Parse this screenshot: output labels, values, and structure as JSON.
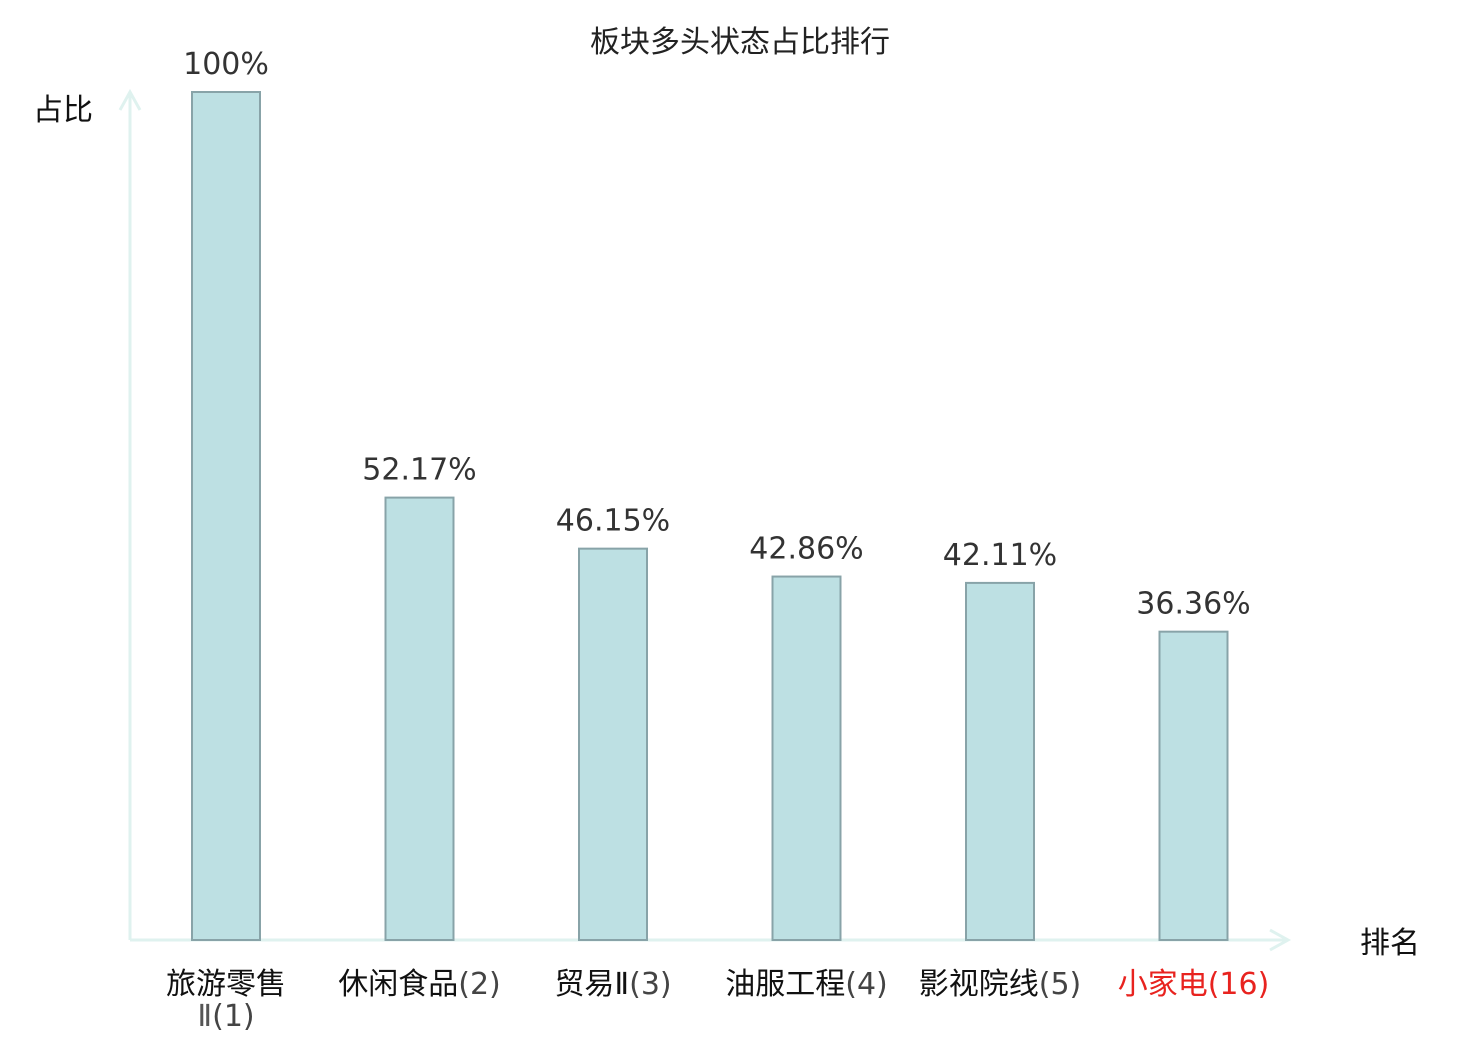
{
  "chart_data": {
    "type": "bar",
    "title": "板块多头状态占比排行",
    "ylabel": "占比",
    "xlabel": "排名",
    "ylim": [
      0,
      100
    ],
    "grid": false,
    "legend": "none",
    "categories": [
      {
        "name": "旅游零售",
        "line2": "Ⅱ",
        "rank": "(1)",
        "highlight": false
      },
      {
        "name": "休闲食品",
        "line2": "",
        "rank": "(2)",
        "highlight": false
      },
      {
        "name": "贸易Ⅱ",
        "line2": "",
        "rank": "(3)",
        "highlight": false
      },
      {
        "name": "油服工程",
        "line2": "",
        "rank": "(4)",
        "highlight": false
      },
      {
        "name": "影视院线",
        "line2": "",
        "rank": "(5)",
        "highlight": false
      },
      {
        "name": "小家电",
        "line2": "",
        "rank": "(16)",
        "highlight": true
      }
    ],
    "values": [
      100,
      52.17,
      46.15,
      42.86,
      42.11,
      36.36
    ],
    "value_labels": [
      "100%",
      "52.17%",
      "46.15%",
      "42.86%",
      "42.11%",
      "36.36%"
    ],
    "colors": {
      "bar_fill": "#bde0e3",
      "bar_stroke": "#88a3a8",
      "axis": "#dff2ef",
      "label": "#111111",
      "rank": "#444444",
      "highlight": "#e8231f"
    }
  }
}
